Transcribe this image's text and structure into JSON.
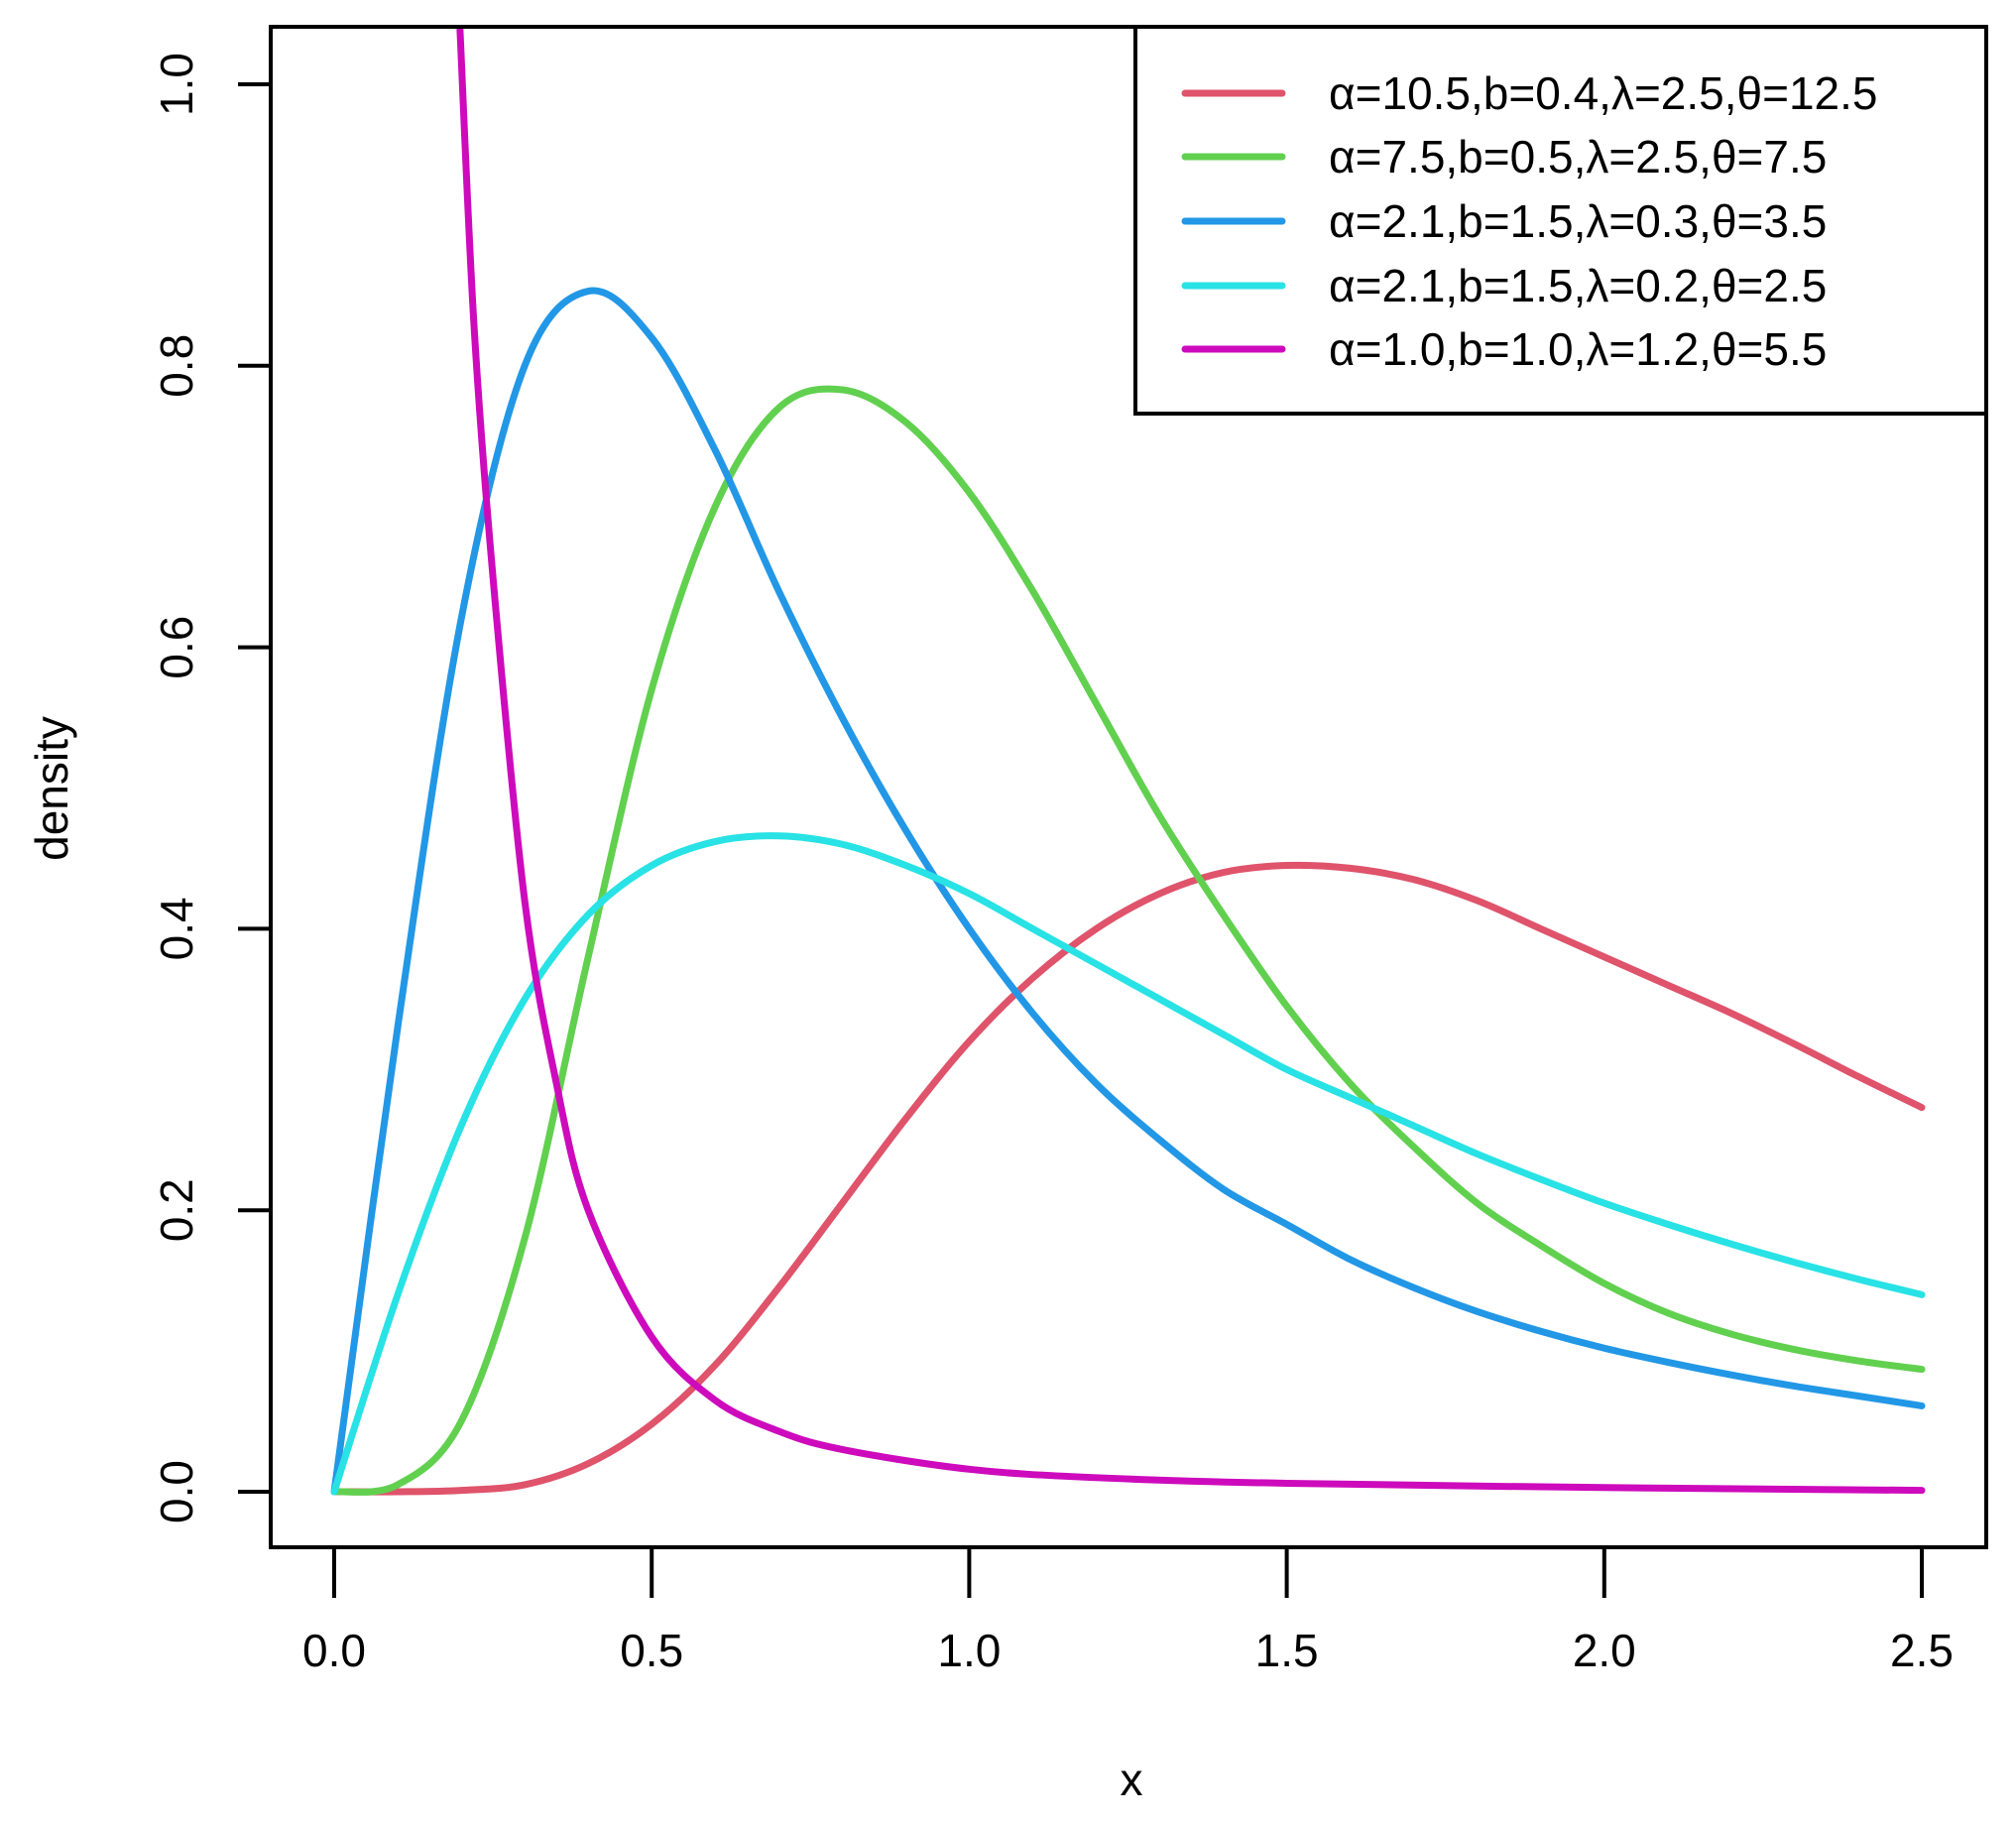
{
  "chart_data": {
    "type": "line",
    "title": "",
    "xlabel": "x",
    "ylabel": "density",
    "xlim": [
      0,
      2.5
    ],
    "ylim": [
      0,
      1.0
    ],
    "grid": false,
    "legend_position": "top-right",
    "x_ticks": [
      "0.0",
      "0.5",
      "1.0",
      "1.5",
      "2.0",
      "2.5"
    ],
    "x_tick_values": [
      0,
      0.5,
      1.0,
      1.5,
      2.0,
      2.5
    ],
    "y_ticks": [
      "0.0",
      "0.2",
      "0.4",
      "0.6",
      "0.8",
      "1.0"
    ],
    "y_tick_values": [
      0,
      0.2,
      0.4,
      0.6,
      0.8,
      1.0
    ],
    "series": [
      {
        "name": "α=10.5,b=0.4,λ=2.5,θ=12.5",
        "color": "#DF536B",
        "x": [
          0,
          0.1,
          0.2,
          0.3,
          0.4,
          0.5,
          0.6,
          0.7,
          0.8,
          0.9,
          1.0,
          1.1,
          1.2,
          1.3,
          1.4,
          1.5,
          1.6,
          1.7,
          1.8,
          1.9,
          2.0,
          2.1,
          2.2,
          2.3,
          2.4,
          2.5
        ],
        "y": [
          0,
          0.0,
          0.001,
          0.005,
          0.02,
          0.048,
          0.09,
          0.145,
          0.205,
          0.265,
          0.32,
          0.365,
          0.4,
          0.425,
          0.44,
          0.445,
          0.443,
          0.435,
          0.42,
          0.4,
          0.38,
          0.36,
          0.34,
          0.318,
          0.295,
          0.273
        ]
      },
      {
        "name": "α=7.5,b=0.5,λ=2.5,θ=7.5",
        "color": "#61D04F",
        "x": [
          0,
          0.1,
          0.2,
          0.3,
          0.4,
          0.5,
          0.6,
          0.7,
          0.8,
          0.9,
          1.0,
          1.1,
          1.2,
          1.3,
          1.4,
          1.5,
          1.6,
          1.7,
          1.8,
          1.9,
          2.0,
          2.1,
          2.2,
          2.3,
          2.4,
          2.5
        ],
        "y": [
          0,
          0.005,
          0.05,
          0.18,
          0.38,
          0.57,
          0.7,
          0.77,
          0.783,
          0.76,
          0.71,
          0.64,
          0.56,
          0.48,
          0.41,
          0.345,
          0.29,
          0.245,
          0.205,
          0.175,
          0.148,
          0.127,
          0.112,
          0.101,
          0.093,
          0.087
        ]
      },
      {
        "name": "α=2.1,b=1.5,λ=0.3,θ=3.5",
        "color": "#2297E6",
        "x": [
          0,
          0.1,
          0.2,
          0.3,
          0.4,
          0.5,
          0.6,
          0.7,
          0.8,
          0.9,
          1.0,
          1.1,
          1.2,
          1.3,
          1.4,
          1.5,
          1.6,
          1.7,
          1.8,
          1.9,
          2.0,
          2.1,
          2.2,
          2.3,
          2.4,
          2.5
        ],
        "y": [
          0,
          0.33,
          0.62,
          0.8,
          0.853,
          0.82,
          0.74,
          0.64,
          0.55,
          0.47,
          0.4,
          0.34,
          0.29,
          0.25,
          0.215,
          0.19,
          0.165,
          0.145,
          0.128,
          0.114,
          0.102,
          0.092,
          0.083,
          0.075,
          0.068,
          0.061
        ]
      },
      {
        "name": "α=2.1,b=1.5,λ=0.2,θ=2.5",
        "color": "#28E2E5",
        "x": [
          0,
          0.1,
          0.2,
          0.3,
          0.4,
          0.5,
          0.6,
          0.7,
          0.8,
          0.9,
          1.0,
          1.1,
          1.2,
          1.3,
          1.4,
          1.5,
          1.6,
          1.7,
          1.8,
          1.9,
          2.0,
          2.1,
          2.2,
          2.3,
          2.4,
          2.5
        ],
        "y": [
          0,
          0.14,
          0.26,
          0.35,
          0.41,
          0.445,
          0.462,
          0.466,
          0.46,
          0.445,
          0.425,
          0.4,
          0.375,
          0.35,
          0.325,
          0.3,
          0.28,
          0.26,
          0.24,
          0.222,
          0.205,
          0.19,
          0.176,
          0.163,
          0.151,
          0.14
        ]
      },
      {
        "name": "α=1.0,b=1.0,λ=1.2,θ=5.5",
        "color": "#CD0BBC",
        "x": [
          0.198,
          0.22,
          0.25,
          0.3,
          0.35,
          0.4,
          0.5,
          0.6,
          0.7,
          0.8,
          1.0,
          1.2,
          1.5,
          2.0,
          2.5
        ],
        "y": [
          1.04,
          0.83,
          0.65,
          0.42,
          0.29,
          0.2,
          0.11,
          0.065,
          0.043,
          0.03,
          0.016,
          0.01,
          0.006,
          0.003,
          0.001
        ]
      }
    ]
  }
}
